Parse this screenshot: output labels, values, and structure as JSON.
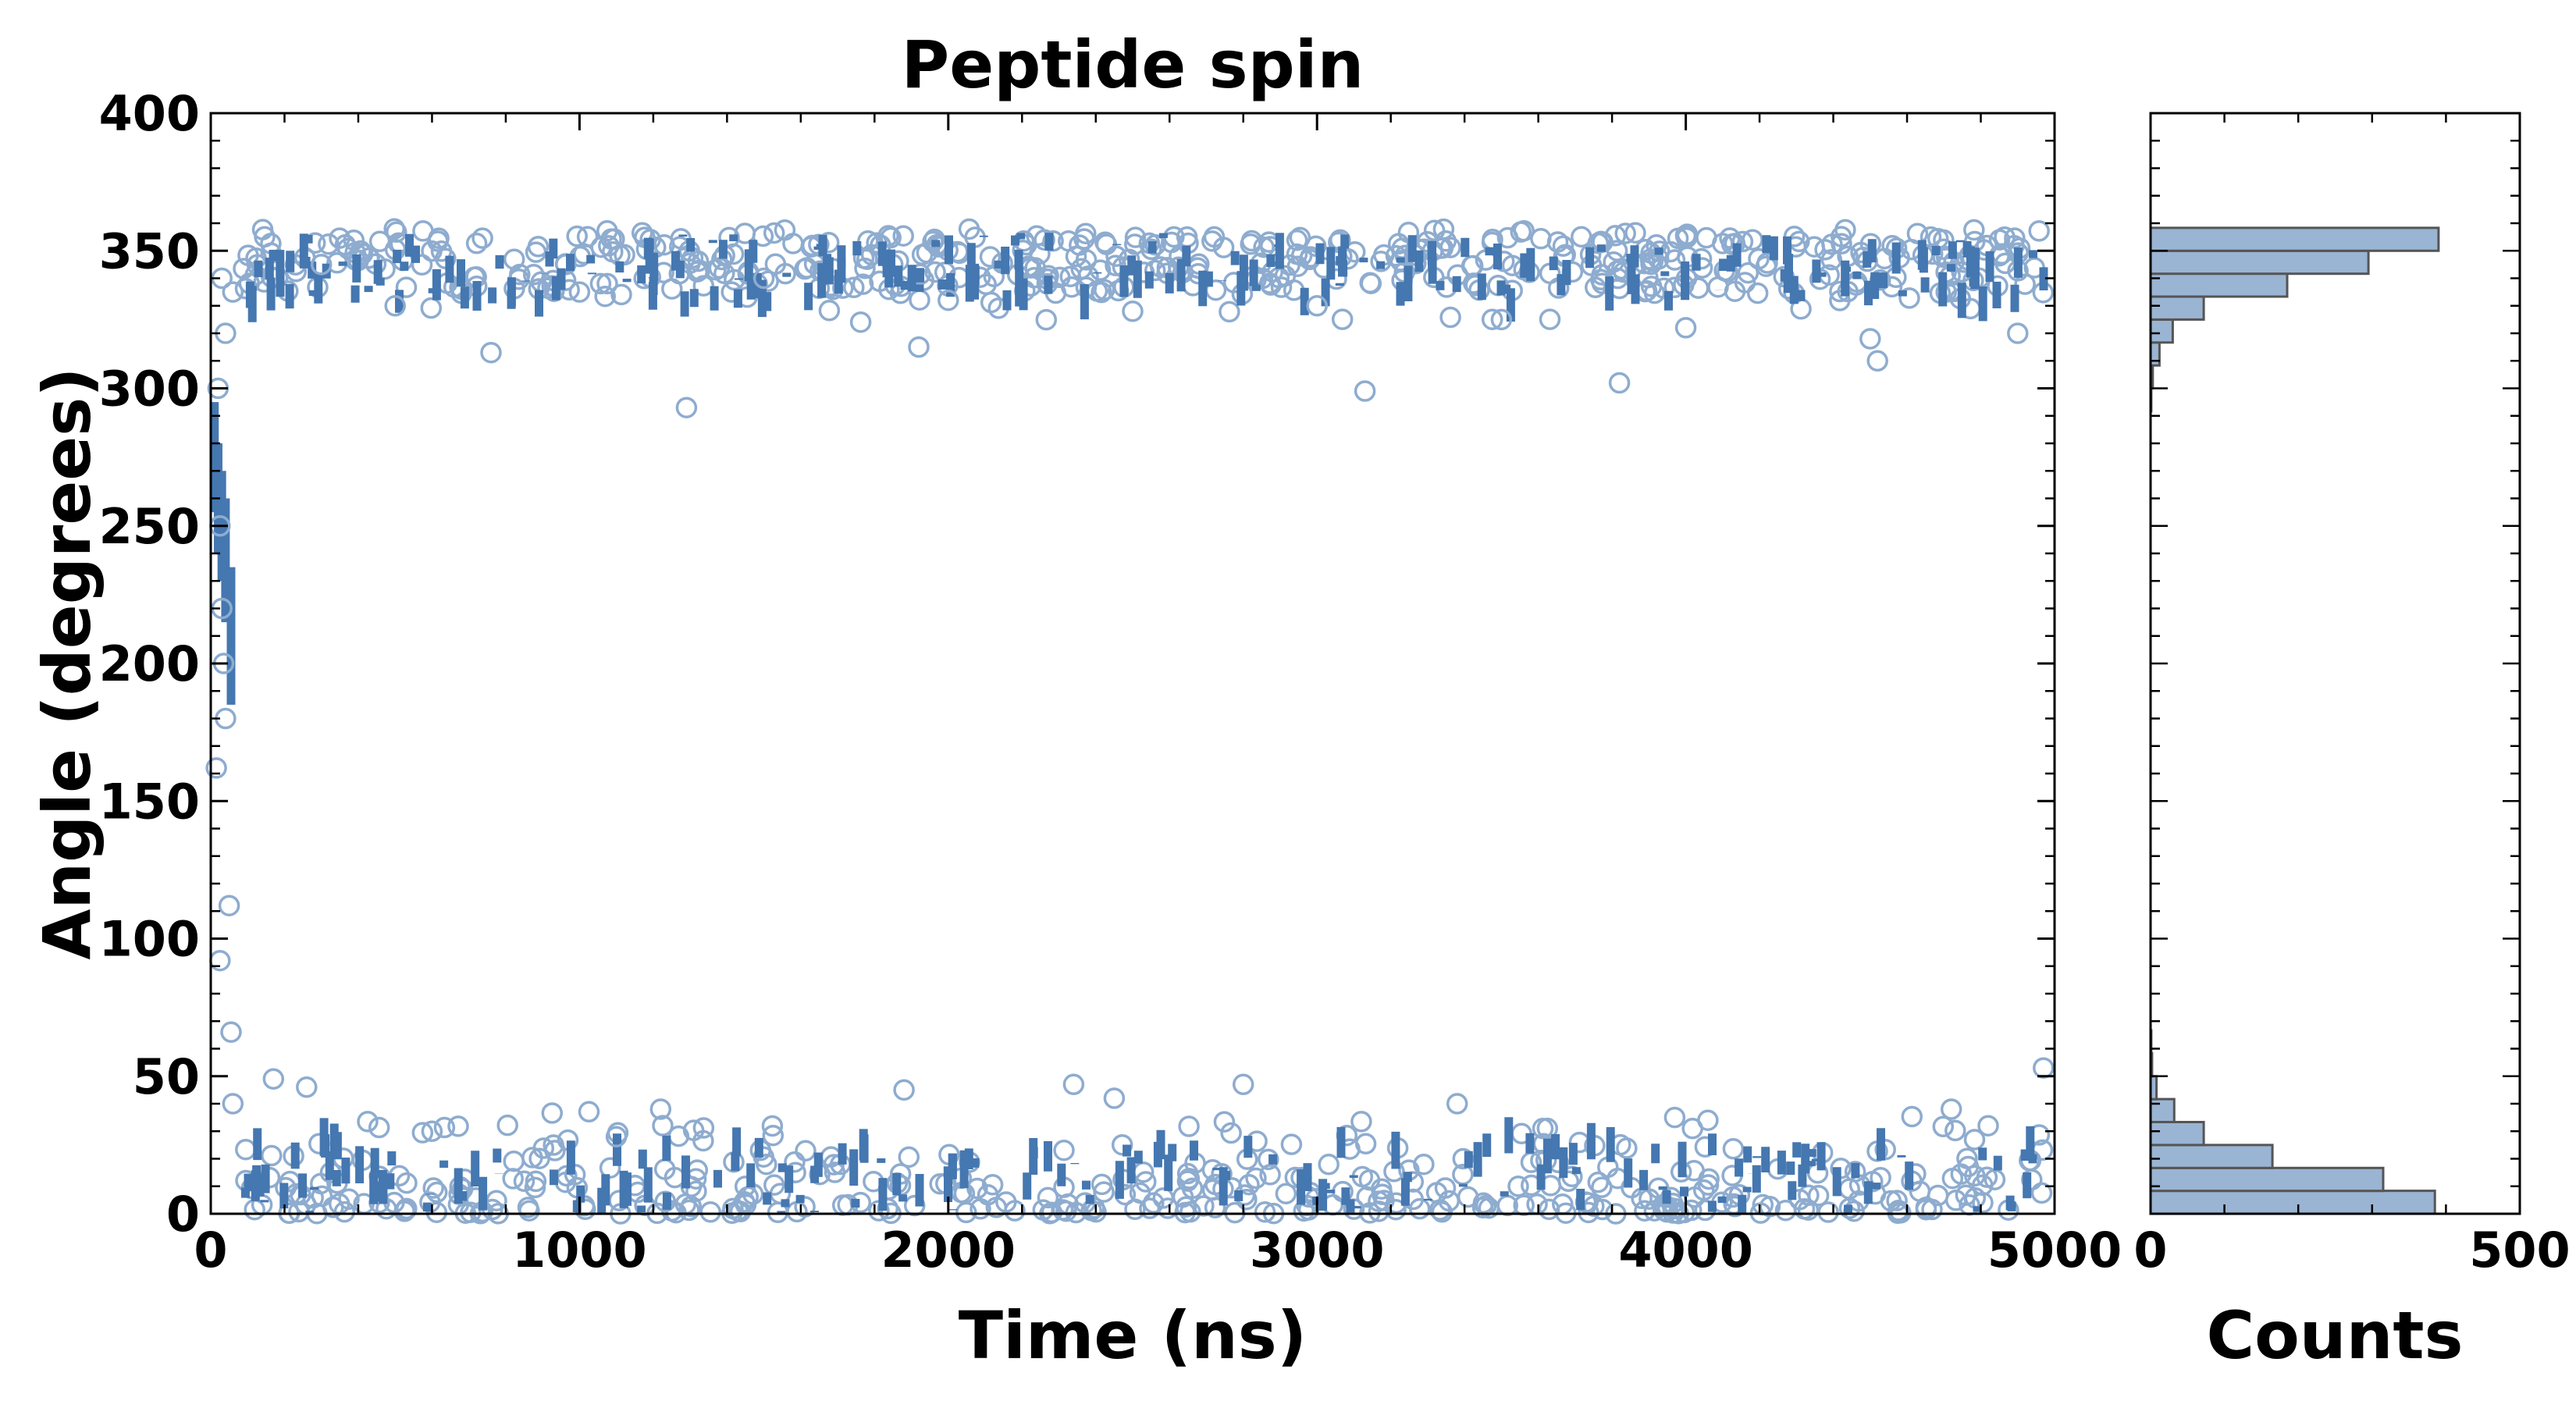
{
  "colors": {
    "main": "#4577b0",
    "marker_edge": "#8eaccf",
    "hist_fill": "#9ab4d3",
    "hist_edge": "#555555"
  },
  "chart_data": [
    {
      "type": "scatter",
      "title": "Peptide spin",
      "xlabel": "Time (ns)",
      "ylabel": "Angle (degrees)",
      "xlim": [
        0,
        5000
      ],
      "ylim": [
        0,
        400
      ],
      "x_ticks": [
        0,
        1000,
        2000,
        3000,
        4000,
        5000
      ],
      "y_ticks": [
        0,
        50,
        100,
        150,
        200,
        250,
        300,
        350,
        400
      ],
      "grid": false,
      "series": [
        {
          "marker": "open-circle",
          "description_of_data": "upper-state samples",
          "points": [
            [
              300,
              345
            ],
            [
              760,
              313
            ],
            [
              1290,
              293
            ],
            [
              1920,
              315
            ],
            [
              3130,
              299
            ],
            [
              3820,
              302
            ],
            [
              4520,
              310
            ],
            [
              60,
              335
            ],
            [
              40,
              320
            ],
            [
              30,
              340
            ],
            [
              500,
              330
            ],
            [
              1000,
              335
            ],
            [
              1500,
              340
            ],
            [
              2000,
              332
            ],
            [
              2500,
              328
            ],
            [
              3000,
              330
            ],
            [
              3500,
              325
            ],
            [
              4000,
              322
            ],
            [
              4500,
              318
            ],
            [
              4900,
              320
            ]
          ]
        },
        {
          "marker": "open-circle",
          "description_of_data": "transition samples",
          "points": [
            [
              20,
              300
            ],
            [
              25,
              250
            ],
            [
              30,
              220
            ],
            [
              35,
              200
            ],
            [
              40,
              180
            ],
            [
              15,
              162
            ],
            [
              50,
              112
            ],
            [
              25,
              92
            ],
            [
              55,
              66
            ],
            [
              60,
              40
            ]
          ]
        },
        {
          "marker": "open-circle",
          "description_of_data": "lower-state samples",
          "points": [
            [
              170,
              49
            ],
            [
              260,
              46
            ],
            [
              1880,
              45
            ],
            [
              2340,
              47
            ],
            [
              2800,
              47
            ],
            [
              3380,
              40
            ],
            [
              4060,
              34
            ],
            [
              4720,
              38
            ],
            [
              4970,
              53
            ],
            [
              1220,
              38
            ],
            [
              2450,
              42
            ],
            [
              3970,
              35
            ],
            [
              4820,
              32
            ],
            [
              600,
              30
            ],
            [
              1100,
              28
            ]
          ]
        }
      ]
    },
    {
      "type": "bar",
      "orientation": "horizontal",
      "xlabel": "Counts",
      "xlim": [
        0,
        500
      ],
      "ylim": [
        0,
        400
      ],
      "x_ticks": [
        0,
        500
      ],
      "bin_width": 8.33,
      "bins": [
        [
          0,
          385
        ],
        [
          8.33,
          315
        ],
        [
          16.67,
          165
        ],
        [
          25,
          72
        ],
        [
          33.33,
          32
        ],
        [
          41.67,
          8
        ],
        [
          50,
          2
        ],
        [
          58.33,
          1
        ],
        [
          291.67,
          1
        ],
        [
          300,
          3
        ],
        [
          308.33,
          12
        ],
        [
          316.67,
          30
        ],
        [
          325,
          72
        ],
        [
          333.33,
          185
        ],
        [
          341.67,
          295
        ],
        [
          350,
          390
        ]
      ]
    }
  ]
}
